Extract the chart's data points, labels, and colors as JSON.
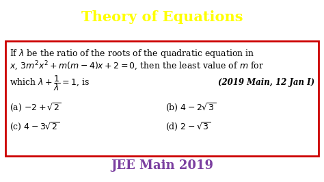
{
  "title": "Theory of Equations",
  "title_bg_color": "#3a5a1a",
  "title_text_color": "#ffff00",
  "title_fontsize": 15,
  "question_line1": "If $\\lambda$ be the ratio of the roots of the quadratic equation in",
  "question_line2": "$x$, $3m^2x^2 + m(m-4)x + 2 = 0$, then the least value of $m$ for",
  "question_line3": "which $\\lambda + \\dfrac{1}{\\lambda} = 1$, is",
  "question_ref": "(2019 Main, 12 Jan I)",
  "opt_a": "(a) $-2 + \\sqrt{2}$",
  "opt_b": "(b) $4 - 2\\sqrt{3}$",
  "opt_c": "(c) $4 - 3\\sqrt{2}$",
  "opt_d": "(d) $2 - \\sqrt{3}$",
  "footer": "JEE Main 2019",
  "footer_color": "#7b3fa0",
  "footer_fontsize": 13,
  "box_edge_color": "#cc0000",
  "bg_color": "#ffffff",
  "text_color": "#000000",
  "question_fontsize": 9.0,
  "ref_fontsize": 8.5
}
